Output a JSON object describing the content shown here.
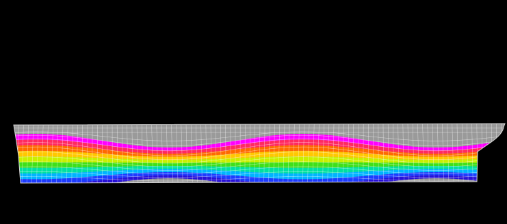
{
  "viewer": {
    "background_color": "#000000",
    "mesh_color": "#ffffff",
    "undeformed_region_color": "#9a9a9a",
    "result_colormap": [
      "#ff00ff",
      "#ff2a60",
      "#ff6a00",
      "#ffc800",
      "#c8f000",
      "#3ee01a",
      "#00e0a0",
      "#00b4ff",
      "#1e3cff",
      "#2810d8"
    ],
    "model": "ship-hull-longitudinal-section",
    "result_pattern": "wave-shaped-contour-bands"
  }
}
